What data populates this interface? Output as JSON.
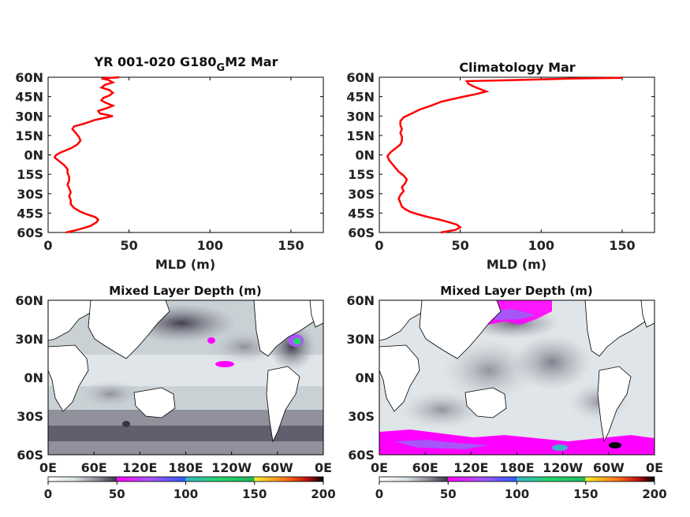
{
  "colors": {
    "profile_line": "#ff0000",
    "axis": "#000000",
    "colormap": [
      "#ffffff",
      "#d6dde0",
      "#8a8a96",
      "#3a3548",
      "#ff00ff",
      "#a855f7",
      "#2b5cff",
      "#3ab4c8",
      "#22d66a",
      "#f6ef2a",
      "#ff7a1a",
      "#c11010",
      "#000000"
    ]
  },
  "chart_data": [
    {
      "type": "line",
      "title_main": "YR 001-020 G180",
      "title_sub": "G",
      "title_tail": "M2 Mar",
      "xlabel": "MLD (m)",
      "xlim": [
        0,
        170
      ],
      "ylim": [
        -60,
        60
      ],
      "xticks": [
        "0",
        "50",
        "100",
        "150"
      ],
      "xtick_values": [
        0,
        50,
        100,
        150
      ],
      "yticks": [
        "60N",
        "45N",
        "30N",
        "15N",
        "0N",
        "15S",
        "30S",
        "45S",
        "60S"
      ],
      "ytick_values": [
        60,
        45,
        30,
        15,
        0,
        -15,
        -30,
        -45,
        -60
      ],
      "series": [
        {
          "lat": [
            -60,
            -58,
            -55,
            -52,
            -50,
            -48,
            -46,
            -44,
            -41,
            -38,
            -35,
            -32,
            -29,
            -26,
            -23,
            -20,
            -17,
            -14,
            -11,
            -8,
            -5,
            -2,
            0,
            2,
            5,
            8,
            11,
            14,
            17,
            20,
            22,
            24,
            27,
            30,
            32,
            34,
            36,
            38,
            40,
            42,
            44,
            46,
            48,
            50,
            52,
            54,
            56,
            58,
            59,
            60
          ],
          "mld": [
            11,
            18,
            26,
            30,
            31,
            29,
            24,
            20,
            16,
            14,
            14,
            13,
            14,
            13,
            12,
            13,
            13,
            12,
            12,
            10,
            7,
            4,
            5,
            8,
            14,
            18,
            20,
            19,
            17,
            15,
            16,
            22,
            29,
            40,
            32,
            31,
            36,
            40,
            36,
            33,
            34,
            38,
            40,
            38,
            33,
            35,
            40,
            37,
            33,
            44
          ]
        }
      ]
    },
    {
      "type": "line",
      "title_main": "Climatology Mar",
      "title_sub": "",
      "title_tail": "",
      "xlabel": "MLD (m)",
      "xlim": [
        0,
        170
      ],
      "ylim": [
        -60,
        60
      ],
      "xticks": [
        "0",
        "50",
        "100",
        "150"
      ],
      "xtick_values": [
        0,
        50,
        100,
        150
      ],
      "yticks": [
        "60N",
        "45N",
        "30N",
        "15N",
        "0N",
        "15S",
        "30S",
        "45S",
        "60S"
      ],
      "ytick_values": [
        60,
        45,
        30,
        15,
        0,
        -15,
        -30,
        -45,
        -60
      ],
      "series": [
        {
          "lat": [
            -60,
            -58,
            -56,
            -54,
            -52,
            -50,
            -48,
            -46,
            -44,
            -42,
            -40,
            -37,
            -34,
            -31,
            -28,
            -25,
            -22,
            -19,
            -16,
            -13,
            -10,
            -7,
            -4,
            -1,
            2,
            5,
            8,
            11,
            14,
            17,
            20,
            23,
            26,
            29,
            32,
            35,
            38,
            41,
            43,
            45,
            47,
            49,
            51,
            53,
            55,
            57,
            58,
            59,
            59.5,
            60
          ],
          "mld": [
            38,
            47,
            50,
            48,
            43,
            37,
            30,
            24,
            19,
            16,
            14,
            13,
            12,
            13,
            15,
            14,
            16,
            17,
            15,
            12,
            10,
            8,
            6,
            5,
            7,
            10,
            13,
            14,
            14,
            13,
            14,
            13,
            13,
            15,
            20,
            25,
            32,
            38,
            45,
            52,
            60,
            66,
            62,
            58,
            55,
            54,
            90,
            120,
            150,
            149
          ]
        }
      ]
    },
    {
      "type": "heatmap",
      "title": "Mixed Layer Depth (m)",
      "xticks": [
        "0E",
        "60E",
        "120E",
        "180E",
        "120W",
        "60W",
        "0E"
      ],
      "yticks": [
        "60N",
        "30N",
        "0N",
        "30S",
        "60S"
      ],
      "colorbar_ticks": [
        "0",
        "50",
        "100",
        "150",
        "200"
      ],
      "colorbar_range": [
        0,
        200
      ]
    },
    {
      "type": "heatmap",
      "title": "Mixed Layer Depth (m)",
      "xticks": [
        "0E",
        "60E",
        "120E",
        "180E",
        "120W",
        "60W",
        "0E"
      ],
      "yticks": [
        "60N",
        "30N",
        "0N",
        "30S",
        "60S"
      ],
      "colorbar_ticks": [
        "0",
        "50",
        "100",
        "150",
        "200"
      ],
      "colorbar_range": [
        0,
        200
      ]
    }
  ]
}
